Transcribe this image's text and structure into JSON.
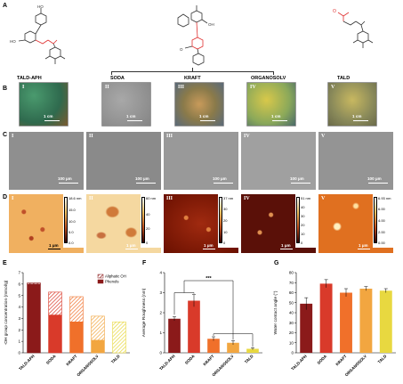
{
  "panels": {
    "A": "A",
    "B": "B",
    "C": "C",
    "D": "D",
    "E": "E",
    "F": "F",
    "G": "G"
  },
  "samples": [
    "TALD-APH",
    "SODA",
    "KRAFT",
    "ORGANOSOLV",
    "TALD"
  ],
  "roman": [
    "I",
    "II",
    "III",
    "IV",
    "V"
  ],
  "photo_scale": "1 cm",
  "sem_scale": "100 µm",
  "afm_scale": "1 µm",
  "afm_colorbars": [
    {
      "max": "18.6 nm",
      "ticks": [
        "15.0",
        "10.0",
        "5.0",
        "0.0"
      ]
    },
    {
      "max": "60 nm",
      "ticks": [
        "40",
        "20",
        "0"
      ]
    },
    {
      "max": "37 nm",
      "ticks": [
        "30",
        "20",
        "10",
        "0"
      ]
    },
    {
      "max": "51 nm",
      "ticks": [
        "40",
        "30",
        "20",
        "10",
        "0"
      ]
    },
    {
      "max": "6.93 nm",
      "ticks": [
        "6.00",
        "4.00",
        "2.00",
        "0.00"
      ]
    }
  ],
  "photo_colors": [
    "#3f8a6e",
    "#9a9a9a",
    "#b89a5a",
    "#c8b84a",
    "#b7a95a"
  ],
  "structure_labels": {
    "oh1": "HO",
    "oh2": "OH",
    "o": "O"
  },
  "chart_data": [
    {
      "type": "bar",
      "panel": "E",
      "categories": [
        "TALD-APH",
        "SODA",
        "KRAFT",
        "ORGANOSOLV",
        "TALD"
      ],
      "ylabel": "-OH group concentration (mmol/g)",
      "ylim": [
        0,
        7
      ],
      "yticks": [
        0,
        1,
        2,
        3,
        4,
        5,
        6,
        7
      ],
      "series": [
        {
          "name": "Phenols",
          "values": [
            6.0,
            3.3,
            2.7,
            1.1,
            0.0
          ]
        },
        {
          "name": "Aliphatic OH",
          "values": [
            0.1,
            2.0,
            2.2,
            2.1,
            2.7
          ]
        }
      ],
      "colors": [
        "#8b1a1a",
        "#d93a2a",
        "#f0702a",
        "#f2a640",
        "#e8d840"
      ]
    },
    {
      "type": "bar",
      "panel": "F",
      "categories": [
        "TALD-APH",
        "SODA",
        "KRAFT",
        "ORGANOSOLV",
        "TALD"
      ],
      "ylabel": "Average Roughness (nm)",
      "ylim": [
        0,
        4
      ],
      "yticks": [
        0,
        1,
        2,
        3,
        4
      ],
      "values": [
        1.7,
        2.6,
        0.7,
        0.5,
        0.2
      ],
      "errors": [
        0.1,
        0.3,
        0.1,
        0.1,
        0.05
      ],
      "annotation": "***",
      "colors": [
        "#8b1a1a",
        "#d93a2a",
        "#f0702a",
        "#f2a640",
        "#e8d840"
      ]
    },
    {
      "type": "bar",
      "panel": "G",
      "categories": [
        "TALD-APH",
        "SODA",
        "KRAFT",
        "ORGANOSOLV",
        "TALD"
      ],
      "ylabel": "Water contact angle (°)",
      "ylim": [
        0,
        80
      ],
      "yticks": [
        0,
        10,
        20,
        30,
        40,
        50,
        60,
        70,
        80
      ],
      "values": [
        49,
        69,
        60,
        64,
        62
      ],
      "errors": [
        6,
        4,
        4,
        2,
        2
      ],
      "colors": [
        "#8b1a1a",
        "#d93a2a",
        "#f0702a",
        "#f2a640",
        "#e8d840"
      ]
    }
  ]
}
